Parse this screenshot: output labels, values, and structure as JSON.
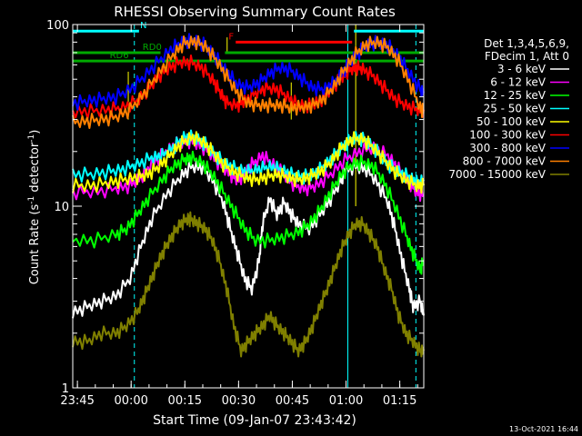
{
  "chart_data": {
    "type": "line",
    "title": "RHESSI Observing Summary Count Rates",
    "xlabel": "Start Time (09-Jan-07 23:43:42)",
    "ylabel": "Count Rate (s",
    "ylabel_sup": "-1",
    "ylabel_mid": " detector",
    "ylabel_end": ")",
    "x_unit": "minutes after 23:43:42",
    "xlim": [
      0,
      98
    ],
    "ylim": [
      1,
      100
    ],
    "yscale": "log",
    "x_ticks": [
      {
        "x": 1.3,
        "label": "23:45"
      },
      {
        "x": 16.3,
        "label": "00:00"
      },
      {
        "x": 31.3,
        "label": "00:15"
      },
      {
        "x": 46.3,
        "label": "00:30"
      },
      {
        "x": 61.3,
        "label": "00:45"
      },
      {
        "x": 76.3,
        "label": "01:00"
      },
      {
        "x": 91.3,
        "label": "01:15"
      }
    ],
    "y_ticks": [
      {
        "y": 1,
        "label": "1"
      },
      {
        "y": 10,
        "label": "10"
      },
      {
        "y": 100,
        "label": "100"
      }
    ],
    "legend_header": [
      "Det 1,3,4,5,6,9,",
      "FDecim 1, Att 0"
    ],
    "series": [
      {
        "name": "3 - 6 keV",
        "color": "#ffffff",
        "x": [
          0,
          4,
          8,
          12,
          16,
          19,
          22,
          26,
          30,
          33,
          36,
          39,
          42,
          44,
          46,
          48,
          50,
          52,
          53,
          55,
          57,
          59,
          61,
          63,
          66,
          69,
          72,
          75,
          76,
          79,
          82,
          85,
          88,
          90,
          92,
          94,
          95,
          97,
          98
        ],
        "y": [
          2.6,
          2.8,
          3.0,
          3.2,
          4.0,
          6.0,
          8.5,
          11.5,
          14.5,
          16.5,
          16.5,
          14.0,
          10.5,
          7.5,
          5.5,
          4.0,
          3.5,
          5.0,
          8.0,
          11.0,
          9.0,
          10.5,
          9.0,
          8.0,
          7.5,
          9.0,
          11.0,
          14.0,
          16.0,
          16.5,
          16.0,
          13.5,
          10.5,
          7.5,
          5.0,
          3.5,
          2.8,
          3.0,
          2.5
        ]
      },
      {
        "name": "6 - 12 keV",
        "color": "#ff00ff",
        "x": [
          0,
          6,
          12,
          16,
          19,
          22,
          26,
          29,
          32,
          35,
          38,
          41,
          44,
          46,
          48,
          50,
          53,
          56,
          59,
          62,
          65,
          68,
          72,
          76,
          80,
          84,
          88,
          91,
          94,
          96,
          98
        ],
        "y": [
          12,
          12,
          12.5,
          13,
          14.5,
          17,
          20,
          22,
          23,
          22,
          20,
          17,
          15,
          14,
          15,
          17,
          19,
          17,
          15,
          13,
          12.5,
          13,
          15,
          18,
          20,
          21,
          19,
          16,
          13.5,
          12,
          11.5
        ]
      },
      {
        "name": "12 - 25 keV",
        "color": "#00ff00",
        "x": [
          0,
          6,
          12,
          15,
          18,
          21,
          25,
          28,
          31,
          33,
          36,
          39,
          42,
          45,
          48,
          51,
          55,
          59,
          63,
          66,
          69,
          72,
          75,
          78,
          81,
          84,
          87,
          90,
          93,
          95,
          97,
          98
        ],
        "y": [
          6.5,
          6.5,
          7,
          7.5,
          9,
          11,
          14,
          16.5,
          18,
          18.5,
          17.5,
          15,
          12,
          9.5,
          7.5,
          6.5,
          6.5,
          6.8,
          7.2,
          8,
          9.5,
          12,
          15,
          17,
          17.5,
          16.5,
          13.5,
          10,
          7,
          5.5,
          4.5,
          5
        ]
      },
      {
        "name": "25 - 50 keV",
        "color": "#00ffff",
        "x": [
          0,
          5,
          10,
          14,
          18,
          22,
          25,
          28,
          31,
          34,
          37,
          40,
          43,
          46,
          49,
          52,
          55,
          58,
          61,
          64,
          67,
          70,
          73,
          76,
          79,
          82,
          85,
          88,
          91,
          94,
          96,
          98
        ],
        "y": [
          15,
          15,
          15.5,
          16,
          17,
          18.5,
          19,
          21,
          24,
          24,
          22,
          19,
          17,
          16,
          15.5,
          16,
          16.5,
          16,
          15,
          14.5,
          15,
          16.5,
          19,
          22,
          24,
          23,
          20,
          17,
          15.5,
          14.5,
          13.5,
          14
        ]
      },
      {
        "name": "50 - 100 keV",
        "color": "#ffff00",
        "x": [
          0,
          5,
          10,
          14,
          18,
          21,
          24,
          27,
          30,
          33,
          36,
          39,
          42,
          45,
          48,
          51,
          54,
          57,
          60,
          63,
          66,
          69,
          72,
          75,
          78,
          81,
          84,
          87,
          90,
          93,
          96,
          98
        ],
        "y": [
          13,
          13,
          13.5,
          14,
          14.5,
          15,
          16.5,
          19,
          22,
          24,
          23,
          20,
          17,
          15.5,
          14.5,
          14,
          14.5,
          15,
          14.5,
          14,
          14.5,
          15.5,
          17.5,
          21,
          23.5,
          23.5,
          21,
          18,
          15.5,
          14,
          13,
          13
        ]
      },
      {
        "name": "100 - 300 keV",
        "color": "#ff0000",
        "x": [
          0,
          5,
          10,
          14,
          18,
          21,
          24,
          27,
          30,
          33,
          36,
          39,
          41,
          43,
          46,
          48,
          51,
          54,
          57,
          60,
          63,
          66,
          69,
          72,
          75,
          77,
          79,
          81,
          84,
          87,
          90,
          93,
          96,
          98
        ],
        "y": [
          33,
          33.5,
          34,
          35,
          38,
          44,
          52,
          58,
          62,
          62,
          58,
          50,
          43,
          37,
          36,
          38,
          42,
          45,
          44,
          40,
          36,
          36,
          38,
          44,
          51,
          56,
          58,
          57,
          52,
          45,
          39,
          36,
          34,
          34
        ]
      },
      {
        "name": "300 - 800 keV",
        "color": "#0000ff",
        "x": [
          0,
          4,
          8,
          12,
          16,
          20,
          24,
          28,
          31,
          34,
          37,
          40,
          43,
          46,
          49,
          52,
          55,
          58,
          61,
          64,
          67,
          70,
          73,
          76,
          79,
          82,
          85,
          88,
          91,
          94,
          97,
          98
        ],
        "y": [
          37,
          38,
          39,
          40,
          44,
          52,
          63,
          75,
          81,
          82,
          77,
          66,
          55,
          47,
          45,
          48,
          54,
          58,
          56,
          50,
          45,
          44,
          48,
          57,
          68,
          77,
          80,
          77,
          67,
          54,
          44,
          42
        ]
      },
      {
        "name": "800 - 7000 keV",
        "color": "#ff8000",
        "x": [
          0,
          4,
          8,
          12,
          16,
          20,
          24,
          28,
          31,
          34,
          37,
          40,
          43,
          46,
          49,
          52,
          55,
          58,
          61,
          64,
          67,
          70,
          73,
          76,
          79,
          82,
          85,
          88,
          91,
          94,
          97,
          98
        ],
        "y": [
          29,
          29.5,
          30,
          31,
          34,
          42,
          54,
          68,
          79,
          81,
          76,
          64,
          52,
          42,
          37,
          36,
          36,
          36,
          35,
          35,
          36,
          39,
          46,
          57,
          69,
          78,
          80,
          75,
          63,
          48,
          35,
          33
        ]
      },
      {
        "name": "7000 - 15000 keV",
        "color": "#808000",
        "x": [
          0,
          4,
          8,
          12,
          15,
          18,
          20,
          22,
          24,
          26,
          28,
          30,
          32,
          33,
          35,
          37,
          39,
          41,
          43,
          45,
          47,
          49,
          51,
          53,
          55,
          57,
          59,
          61,
          63,
          65,
          67,
          69,
          71,
          73,
          75,
          77,
          79,
          81,
          83,
          85,
          87,
          89,
          91,
          93,
          95,
          97,
          98
        ],
        "y": [
          1.8,
          1.8,
          2,
          2,
          2.2,
          2.6,
          3.2,
          4,
          5,
          6,
          7,
          8,
          8.5,
          8.5,
          8,
          7.5,
          6.5,
          5,
          3.5,
          2.2,
          1.6,
          1.8,
          2,
          2.2,
          2.5,
          2.2,
          2,
          1.8,
          1.6,
          1.8,
          2.2,
          2.8,
          3.5,
          4.5,
          5.8,
          7,
          8,
          8,
          7,
          6,
          4.5,
          3.5,
          2.5,
          2,
          1.8,
          1.6,
          1.6
        ]
      }
    ],
    "annotations": [
      {
        "label": "N",
        "color": "#00ffff",
        "segments": [
          [
            0,
            18.5
          ],
          [
            78.5,
            98
          ]
        ],
        "y": 92,
        "label_x": 18.8
      },
      {
        "label": "F",
        "color": "#ff0000",
        "segments": [
          [
            45.5,
            78
          ]
        ],
        "y": 80,
        "label_x": 43.5
      },
      {
        "label": "RD0",
        "color": "#00aa00",
        "segments": [
          [
            0,
            24.5
          ],
          [
            42.5,
            98
          ]
        ],
        "y": 70,
        "label_x": 19.5
      },
      {
        "label": "RD6",
        "color": "#00aa00",
        "segments": [
          [
            0,
            98
          ]
        ],
        "y": 63,
        "label_x": 10.3
      }
    ],
    "flag_lines": {
      "saa_solid": [
        [
          0,
          1,
          100
        ],
        [
          76.8,
          1,
          100
        ]
      ],
      "eclipse_dashed": [
        [
          17.2,
          1,
          100
        ],
        [
          95.8,
          1,
          100
        ]
      ],
      "attenuator": [
        [
          15.5,
          30,
          55
        ],
        [
          43.1,
          70,
          85
        ],
        [
          61.0,
          30,
          48
        ],
        [
          79.0,
          10,
          100
        ]
      ]
    },
    "timestamp": "13-Oct-2021 16:44"
  }
}
